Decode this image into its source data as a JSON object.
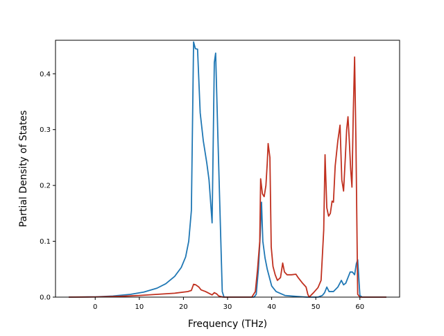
{
  "chart_data": {
    "type": "line",
    "title": "",
    "xlabel": "Frequency (THz)",
    "ylabel": "Partial Density of States",
    "xlim": [
      -9,
      69
    ],
    "ylim": [
      0,
      0.46
    ],
    "xticks": [
      0,
      10,
      20,
      30,
      40,
      50,
      60
    ],
    "yticks": [
      0.0,
      0.1,
      0.2,
      0.3,
      0.4
    ],
    "xtick_labels": [
      "0",
      "10",
      "20",
      "30",
      "40",
      "50",
      "60"
    ],
    "ytick_labels": [
      "0.0",
      "0.1",
      "0.2",
      "0.3",
      "0.4"
    ],
    "grid": false,
    "legend": "none",
    "series": [
      {
        "color": "#1f77b4",
        "points": [
          [
            -6,
            0
          ],
          [
            0,
            0.0005
          ],
          [
            4,
            0.002
          ],
          [
            8,
            0.005
          ],
          [
            11,
            0.009
          ],
          [
            14,
            0.016
          ],
          [
            16,
            0.024
          ],
          [
            18,
            0.037
          ],
          [
            19.5,
            0.053
          ],
          [
            20.5,
            0.072
          ],
          [
            21.2,
            0.1
          ],
          [
            21.8,
            0.155
          ],
          [
            22.3,
            0.457
          ],
          [
            22.7,
            0.445
          ],
          [
            23.2,
            0.444
          ],
          [
            23.8,
            0.33
          ],
          [
            24.5,
            0.28
          ],
          [
            25.3,
            0.24
          ],
          [
            25.8,
            0.21
          ],
          [
            26.5,
            0.133
          ],
          [
            27,
            0.42
          ],
          [
            27.3,
            0.437
          ],
          [
            27.8,
            0.29
          ],
          [
            28.3,
            0.15
          ],
          [
            28.8,
            0.01
          ],
          [
            29.2,
            0
          ],
          [
            36,
            0
          ],
          [
            36.5,
            0.005
          ],
          [
            37,
            0.05
          ],
          [
            37.4,
            0.11
          ],
          [
            37.7,
            0.17
          ],
          [
            38,
            0.1
          ],
          [
            38.5,
            0.07
          ],
          [
            39,
            0.05
          ],
          [
            39.5,
            0.035
          ],
          [
            40,
            0.02
          ],
          [
            41,
            0.01
          ],
          [
            43,
            0.003
          ],
          [
            46,
            0.001
          ],
          [
            48,
            0
          ],
          [
            50.5,
            0
          ],
          [
            51.5,
            0.003
          ],
          [
            52,
            0.008
          ],
          [
            52.5,
            0.018
          ],
          [
            53,
            0.01
          ],
          [
            54,
            0.01
          ],
          [
            55,
            0.018
          ],
          [
            55.8,
            0.03
          ],
          [
            56.3,
            0.022
          ],
          [
            56.8,
            0.025
          ],
          [
            57.3,
            0.035
          ],
          [
            57.8,
            0.045
          ],
          [
            58.3,
            0.045
          ],
          [
            58.8,
            0.04
          ],
          [
            59.2,
            0.06
          ],
          [
            59.5,
            0.067
          ],
          [
            60,
            0.003
          ],
          [
            60.5,
            0
          ],
          [
            66,
            0
          ]
        ]
      },
      {
        "color": "#c0301f",
        "points": [
          [
            -6,
            0
          ],
          [
            0,
            0.0003
          ],
          [
            6,
            0.0015
          ],
          [
            10,
            0.003
          ],
          [
            14,
            0.005
          ],
          [
            18,
            0.007
          ],
          [
            21,
            0.01
          ],
          [
            21.8,
            0.012
          ],
          [
            22.3,
            0.023
          ],
          [
            22.8,
            0.022
          ],
          [
            23.5,
            0.018
          ],
          [
            24,
            0.013
          ],
          [
            25,
            0.01
          ],
          [
            26,
            0.006
          ],
          [
            26.5,
            0.004
          ],
          [
            27,
            0.008
          ],
          [
            27.5,
            0.006
          ],
          [
            28,
            0.002
          ],
          [
            29,
            0
          ],
          [
            35.5,
            0
          ],
          [
            36.3,
            0.01
          ],
          [
            36.8,
            0.05
          ],
          [
            37.3,
            0.1
          ],
          [
            37.5,
            0.212
          ],
          [
            37.9,
            0.185
          ],
          [
            38.3,
            0.18
          ],
          [
            38.7,
            0.2
          ],
          [
            39,
            0.24
          ],
          [
            39.2,
            0.275
          ],
          [
            39.6,
            0.25
          ],
          [
            39.9,
            0.09
          ],
          [
            40.3,
            0.055
          ],
          [
            40.8,
            0.04
          ],
          [
            41.3,
            0.03
          ],
          [
            42,
            0.035
          ],
          [
            42.5,
            0.061
          ],
          [
            42.9,
            0.045
          ],
          [
            43.5,
            0.04
          ],
          [
            44.5,
            0.04
          ],
          [
            45.5,
            0.041
          ],
          [
            46,
            0.035
          ],
          [
            47,
            0.025
          ],
          [
            47.8,
            0.018
          ],
          [
            48.2,
            0.005
          ],
          [
            48.5,
            0.0
          ],
          [
            49.5,
            0.008
          ],
          [
            50.5,
            0.017
          ],
          [
            51.2,
            0.03
          ],
          [
            51.8,
            0.12
          ],
          [
            52.1,
            0.255
          ],
          [
            52.5,
            0.16
          ],
          [
            52.9,
            0.145
          ],
          [
            53.3,
            0.15
          ],
          [
            53.7,
            0.172
          ],
          [
            54,
            0.17
          ],
          [
            54.4,
            0.235
          ],
          [
            55,
            0.28
          ],
          [
            55.5,
            0.308
          ],
          [
            55.9,
            0.21
          ],
          [
            56.3,
            0.19
          ],
          [
            56.7,
            0.25
          ],
          [
            57,
            0.3
          ],
          [
            57.3,
            0.323
          ],
          [
            57.6,
            0.28
          ],
          [
            57.9,
            0.23
          ],
          [
            58.2,
            0.197
          ],
          [
            58.5,
            0.33
          ],
          [
            58.8,
            0.43
          ],
          [
            59.1,
            0.28
          ],
          [
            59.5,
            0.005
          ],
          [
            60,
            0
          ],
          [
            66,
            0
          ]
        ]
      }
    ]
  }
}
